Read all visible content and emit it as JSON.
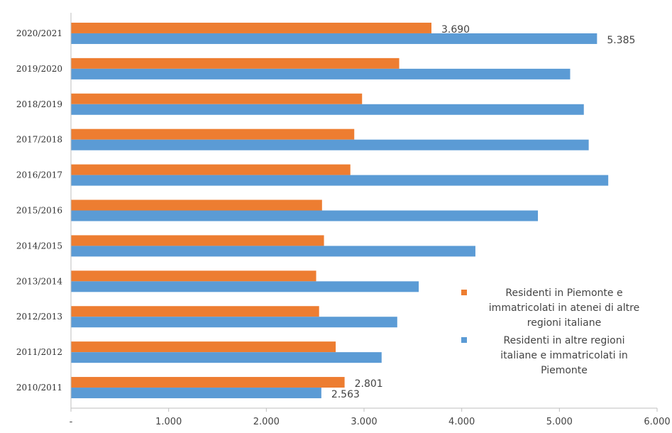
{
  "chart_data": {
    "type": "bar",
    "orientation": "horizontal",
    "categories": [
      "2010/2011",
      "2011/2012",
      "2012/2013",
      "2013/2014",
      "2014/2015",
      "2015/2016",
      "2016/2017",
      "2017/2018",
      "2018/2019",
      "2019/2020",
      "2020/2021"
    ],
    "series": [
      {
        "name": "Residenti in Piemonte e immatricolati in atenei di altre regioni italiane",
        "color": "#ED7D31",
        "values": [
          2801,
          2710,
          2540,
          2510,
          2590,
          2570,
          2860,
          2900,
          2980,
          3360,
          3690
        ]
      },
      {
        "name": "Residenti in altre regioni italiane e immatricolati in Piemonte",
        "color": "#5B9BD5",
        "values": [
          2563,
          3180,
          3340,
          3560,
          4140,
          4780,
          5500,
          5300,
          5250,
          5110,
          5385
        ]
      }
    ],
    "data_labels": [
      {
        "series": 0,
        "category": "2020/2021",
        "text": "3.690"
      },
      {
        "series": 1,
        "category": "2020/2021",
        "text": "5.385"
      },
      {
        "series": 0,
        "category": "2010/2011",
        "text": "2.801"
      },
      {
        "series": 1,
        "category": "2010/2011",
        "text": "2.563"
      }
    ],
    "x_ticks": [
      "-",
      "1.000",
      "2.000",
      "3.000",
      "4.000",
      "5.000",
      "6.000"
    ],
    "xlim": [
      0,
      6000
    ],
    "grid": false,
    "legend_placement": "right",
    "legend_lines": [
      [
        "Residenti in Piemonte e",
        "immatricolati in atenei di altre",
        "regioni italiane"
      ],
      [
        "Residenti in altre regioni",
        "italiane e immatricolati in",
        "Piemonte"
      ]
    ]
  }
}
